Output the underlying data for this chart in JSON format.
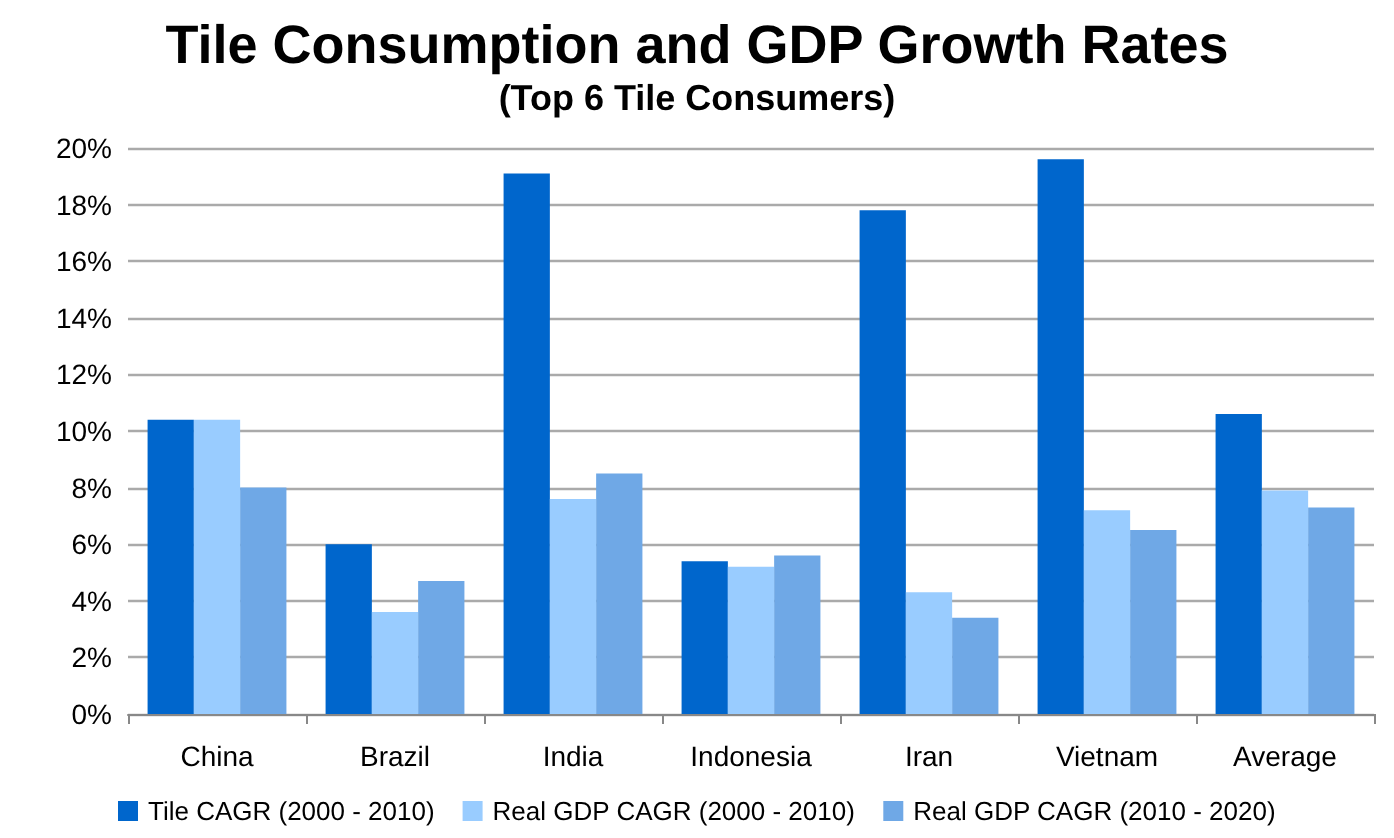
{
  "chart_data": {
    "type": "bar",
    "title": "Tile Consumption and GDP Growth Rates",
    "subtitle": "(Top 6 Tile Consumers)",
    "categories": [
      "China",
      "Brazil",
      "India",
      "Indonesia",
      "Iran",
      "Vietnam",
      "Average"
    ],
    "series": [
      {
        "name": "Tile CAGR (2000 - 2010)",
        "color": "#0066cc",
        "values": [
          10.4,
          6.0,
          19.1,
          5.4,
          17.8,
          19.6,
          10.6
        ]
      },
      {
        "name": "Real GDP CAGR (2000 - 2010)",
        "color": "#99ccff",
        "values": [
          10.4,
          3.6,
          7.6,
          5.2,
          4.3,
          7.2,
          7.9
        ]
      },
      {
        "name": "Real GDP CAGR (2010 - 2020)",
        "color": "#6fa8e6",
        "values": [
          8.0,
          4.7,
          8.5,
          5.6,
          3.4,
          6.5,
          7.3
        ]
      }
    ],
    "ylim": [
      0,
      20
    ],
    "yticks": [
      {
        "value": 0,
        "label": "0%"
      },
      {
        "value": 2,
        "label": "2%"
      },
      {
        "value": 4,
        "label": "4%"
      },
      {
        "value": 6,
        "label": "6%"
      },
      {
        "value": 8,
        "label": "8%"
      },
      {
        "value": 10,
        "label": "10%"
      },
      {
        "value": 12,
        "label": "12%"
      },
      {
        "value": 14,
        "label": "14%"
      },
      {
        "value": 16,
        "label": "16%"
      },
      {
        "value": 18,
        "label": "18%"
      },
      {
        "value": 20,
        "label": "20%"
      }
    ],
    "grid": "y",
    "legend": "bottom"
  }
}
